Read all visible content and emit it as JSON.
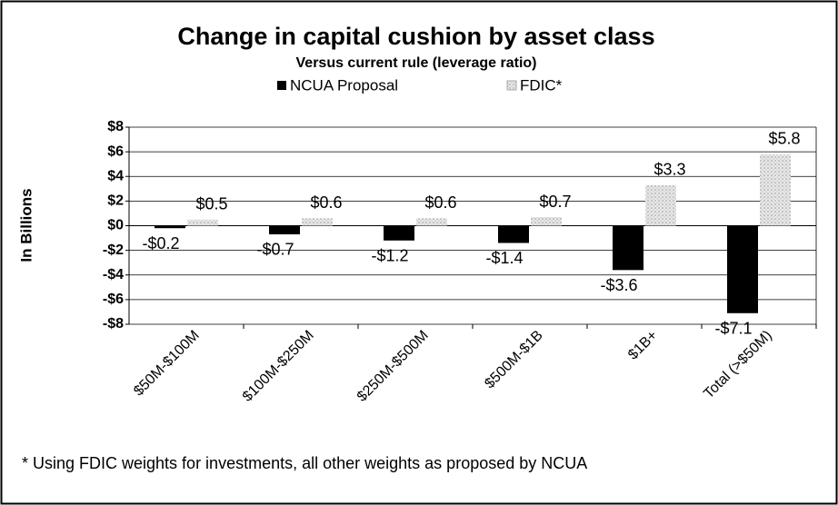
{
  "chart_data": {
    "type": "bar",
    "title": "Change in capital cushion by asset class",
    "subtitle": "Versus current rule (leverage ratio)",
    "y_label": "In Billions",
    "categories": [
      "$50M-$100M",
      "$100M-$250M",
      "$250M-$500M",
      "$500M-$1B",
      "$1B+",
      "Total (>$50M)"
    ],
    "series": [
      {
        "name": "NCUA Proposal",
        "color": "#000000",
        "values": [
          -0.2,
          -0.7,
          -1.2,
          -1.4,
          -3.6,
          -7.1
        ],
        "value_labels": [
          "-$0.2",
          "-$0.7",
          "-$1.2",
          "-$1.4",
          "-$3.6",
          "-$7.1"
        ]
      },
      {
        "name": "FDIC*",
        "color": "#d9d9d9",
        "values": [
          0.5,
          0.6,
          0.6,
          0.7,
          3.3,
          5.8
        ],
        "value_labels": [
          "$0.5",
          "$0.6",
          "$0.6",
          "$0.7",
          "$3.3",
          "$5.8"
        ]
      }
    ],
    "ylim": [
      -8,
      8
    ],
    "yticks": [
      {
        "value": 8,
        "label": "$8"
      },
      {
        "value": 6,
        "label": "$6"
      },
      {
        "value": 4,
        "label": "$4"
      },
      {
        "value": 2,
        "label": "$2"
      },
      {
        "value": 0,
        "label": "$0"
      },
      {
        "value": -2,
        "label": "-$2"
      },
      {
        "value": -4,
        "label": "-$4"
      },
      {
        "value": -6,
        "label": "-$6"
      },
      {
        "value": -8,
        "label": "-$8"
      }
    ],
    "grid": true,
    "legend": "top",
    "footnote": "* Using FDIC weights for investments, all other weights as proposed by NCUA"
  }
}
